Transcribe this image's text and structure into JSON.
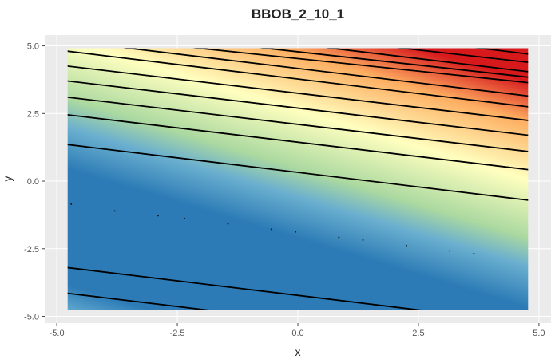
{
  "chart_data": {
    "type": "heatmap",
    "title": "BBOB_2_10_1",
    "xlabel": "x",
    "ylabel": "y",
    "xlim": [
      -5.25,
      5.25
    ],
    "ylim": [
      -5.25,
      5.4
    ],
    "x_ticks": [
      -5.0,
      -2.5,
      0.0,
      2.5,
      5.0
    ],
    "x_tick_labels": [
      "-5.0",
      "-2.5",
      "0.0",
      "2.5",
      "5.0"
    ],
    "y_ticks": [
      -5.0,
      -2.5,
      0.0,
      2.5,
      5.0
    ],
    "y_tick_labels": [
      "-5.0",
      "-2.5",
      "0.0",
      "2.5",
      "5.0"
    ],
    "grid": true,
    "legend": "none",
    "fill_extent": {
      "x": [
        -5,
        5
      ],
      "y": [
        -5,
        5
      ]
    },
    "colorscale": [
      "#2c7bb6",
      "#abd9e9",
      "#ffffbf",
      "#fdae61",
      "#d7191c"
    ],
    "background_color": "#ebebeb",
    "contours": [
      {
        "x": [
          -5.0,
          -3.9
        ],
        "y": [
          -4.8,
          -5.0
        ]
      },
      {
        "x": [
          -5.0,
          -0.8
        ],
        "y": [
          -4.1,
          -5.0
        ]
      },
      {
        "x": [
          -5.0,
          3.6
        ],
        "y": [
          -3.15,
          -5.0
        ]
      },
      {
        "x": [
          -5.0,
          5.0
        ],
        "y": [
          1.4,
          -0.75
        ]
      },
      {
        "x": [
          -5.0,
          5.0
        ],
        "y": [
          2.5,
          0.38
        ]
      },
      {
        "x": [
          -5.0,
          5.0
        ],
        "y": [
          3.15,
          1.05
        ]
      },
      {
        "x": [
          -5.0,
          5.0
        ],
        "y": [
          3.75,
          1.65
        ]
      },
      {
        "x": [
          -5.0,
          5.0
        ],
        "y": [
          4.3,
          2.2
        ]
      },
      {
        "x": [
          -5.0,
          5.0
        ],
        "y": [
          4.85,
          2.7
        ]
      },
      {
        "x": [
          -3.9,
          5.0
        ],
        "y": [
          5.0,
          3.1
        ]
      },
      {
        "x": [
          -2.5,
          5.0
        ],
        "y": [
          5.0,
          3.6
        ]
      },
      {
        "x": [
          -1.1,
          5.0
        ],
        "y": [
          5.0,
          3.8
        ]
      },
      {
        "x": [
          0.3,
          5.0
        ],
        "y": [
          5.0,
          4.0
        ]
      },
      {
        "x": [
          1.75,
          5.0
        ],
        "y": [
          5.0,
          4.35
        ]
      },
      {
        "x": [
          3.4,
          5.0
        ],
        "y": [
          5.0,
          4.65
        ]
      }
    ],
    "sample_points": {
      "x": [
        -4.7,
        -3.8,
        -2.9,
        -2.35,
        -1.45,
        -0.55,
        -0.05,
        0.85,
        1.35,
        2.25,
        3.15,
        3.65
      ],
      "y": [
        -0.85,
        -1.1,
        -1.28,
        -1.38,
        -1.58,
        -1.78,
        -1.88,
        -2.08,
        -2.18,
        -2.38,
        -2.58,
        -2.68
      ]
    }
  }
}
